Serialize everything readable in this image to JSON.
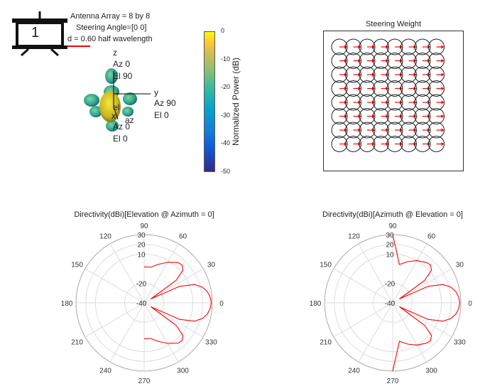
{
  "badge": {
    "number": "1"
  },
  "info": {
    "line1": "Antenna Array = 8 by 8",
    "line2": "Steering Angle=[0 0]",
    "line3": "d = 0.60 half wavelength"
  },
  "pattern3d": {
    "z_label": "z",
    "z_az": "Az 0",
    "z_el": "El 90",
    "y_label": "y",
    "y_az": "Az 90",
    "y_el": "El 0",
    "el_label": "el",
    "az_label": "az",
    "x_label": "x",
    "x_az": "Az 0",
    "x_el": "El 0"
  },
  "colorbar": {
    "label": "Normalized Power (dB)",
    "ticks": [
      "0",
      "-10",
      "-20",
      "-30",
      "-40",
      "-50"
    ],
    "range": [
      -50,
      0
    ]
  },
  "steering": {
    "title": "Steering Weight",
    "rows": 8,
    "cols": 8,
    "arrow_color": "#ff0000"
  },
  "chart_data": [
    {
      "type": "polar",
      "title": "Directivity(dBi)[Elevation @ Azimuth = 0]",
      "angle_ticks": [
        "0",
        "30",
        "60",
        "90",
        "120",
        "150",
        "180",
        "210",
        "240",
        "270",
        "300",
        "330"
      ],
      "radial_ticks": [
        "-40",
        "-20",
        "10",
        "20",
        "30"
      ],
      "rlim": [
        -40,
        30
      ],
      "series": [
        {
          "color": "#ff0000",
          "angles_deg": [
            -90,
            -80,
            -70,
            -60,
            -50,
            -45,
            -40,
            -35,
            -30,
            -25,
            -20,
            -15,
            -10,
            -5,
            0,
            5,
            10,
            15,
            20,
            25,
            30,
            35,
            40,
            45,
            50,
            60,
            70,
            80,
            90
          ],
          "values": [
            -3,
            -3,
            2,
            8,
            14,
            15,
            12,
            0,
            -32,
            0,
            15,
            22,
            26,
            28,
            29,
            28,
            26,
            22,
            15,
            0,
            -32,
            0,
            12,
            15,
            14,
            8,
            2,
            -3,
            -3
          ]
        }
      ]
    },
    {
      "type": "polar",
      "title": "Directivity(dBi)[Azimuth @ Elevation = 0]",
      "angle_ticks": [
        "0",
        "30",
        "60",
        "90",
        "120",
        "150",
        "180",
        "210",
        "240",
        "270",
        "300",
        "330"
      ],
      "radial_ticks": [
        "-40",
        "-20",
        "10",
        "20",
        "30"
      ],
      "rlim": [
        -40,
        30
      ],
      "series": [
        {
          "color": "#ff0000",
          "angles_deg": [
            -90,
            -80,
            -70,
            -60,
            -50,
            -45,
            -40,
            -35,
            -30,
            -25,
            -20,
            -15,
            -10,
            -5,
            0,
            5,
            10,
            15,
            20,
            25,
            30,
            35,
            40,
            45,
            50,
            60,
            70,
            80,
            90
          ],
          "values": [
            30,
            0,
            5,
            10,
            14,
            15,
            12,
            0,
            -32,
            0,
            15,
            22,
            26,
            28,
            29,
            28,
            26,
            22,
            15,
            0,
            -32,
            0,
            12,
            15,
            14,
            10,
            5,
            0,
            30
          ]
        }
      ]
    }
  ]
}
